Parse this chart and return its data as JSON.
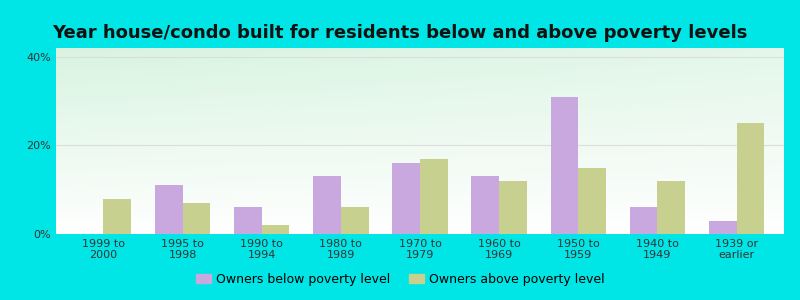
{
  "title": "Year house/condo built for residents below and above poverty levels",
  "categories": [
    "1999 to\n2000",
    "1995 to\n1998",
    "1990 to\n1994",
    "1980 to\n1989",
    "1970 to\n1979",
    "1960 to\n1969",
    "1950 to\n1959",
    "1940 to\n1949",
    "1939 or\nearlier"
  ],
  "below_poverty": [
    0,
    11,
    6,
    13,
    16,
    13,
    31,
    6,
    3
  ],
  "above_poverty": [
    8,
    7,
    2,
    6,
    17,
    12,
    15,
    12,
    25
  ],
  "below_color": "#c9a8e0",
  "above_color": "#c8d090",
  "ylim": [
    0,
    42
  ],
  "yticks": [
    0,
    20,
    40
  ],
  "ytick_labels": [
    "0%",
    "20%",
    "40%"
  ],
  "background_outer": "#00e5e5",
  "grad_top_left": "#b0e8c0",
  "grad_bottom_right": "#f8fff8",
  "grid_color": "#dddddd",
  "title_fontsize": 13,
  "legend_below_label": "Owners below poverty level",
  "legend_above_label": "Owners above poverty level",
  "bar_width": 0.35,
  "legend_fontsize": 9,
  "tick_fontsize": 8
}
